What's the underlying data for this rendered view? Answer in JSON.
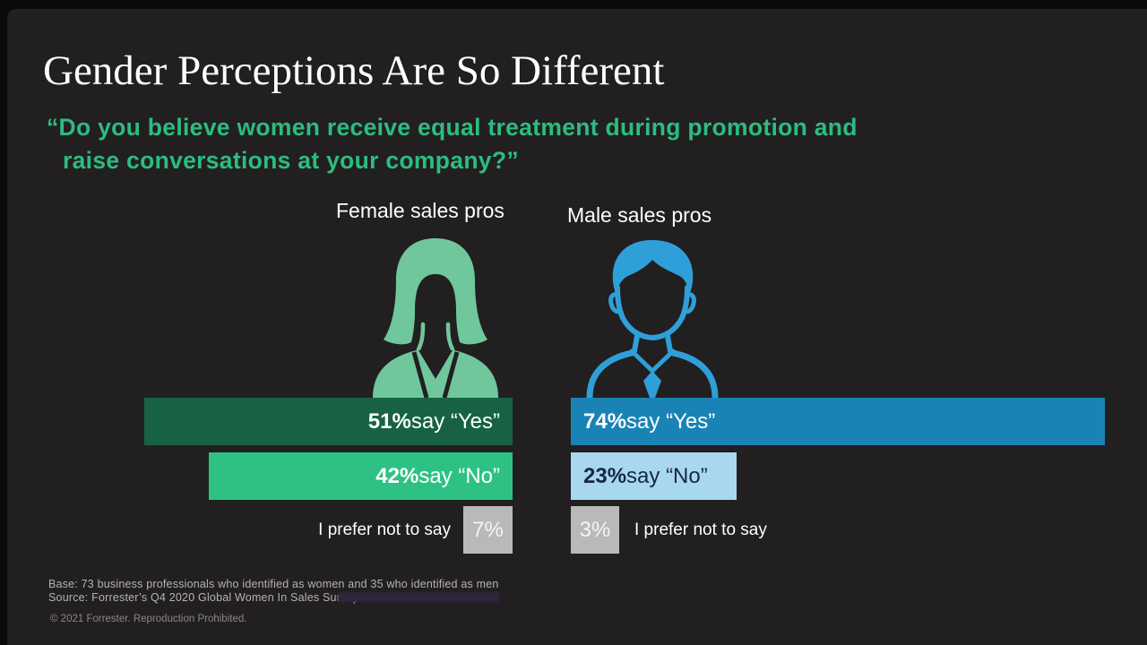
{
  "slide": {
    "title": "Gender Perceptions Are So Different",
    "question": {
      "line1": "“Do you believe women receive equal treatment during promotion and",
      "line2": "raise conversations at your company?”"
    }
  },
  "columns": {
    "female": {
      "label": "Female sales pros",
      "icon": "female-person-icon",
      "bars": {
        "yes": {
          "value": "51%",
          "text": " say “Yes”"
        },
        "no": {
          "value": "42%",
          "text": " say “No”"
        },
        "prefer_not": {
          "value": "7%",
          "label": "I prefer not to say"
        }
      }
    },
    "male": {
      "label": "Male sales pros",
      "icon": "male-person-icon",
      "bars": {
        "yes": {
          "value": "74%",
          "text": " say “Yes”"
        },
        "no": {
          "value": "23%",
          "text": " say “No”"
        },
        "prefer_not": {
          "value": "3%",
          "label": "I prefer not to say"
        }
      }
    }
  },
  "footer": {
    "base": "Base: 73 business professionals who identified as women and 35 who identified as men",
    "source": "Source: Forrester’s Q4 2020 Global Women In Sales Survey",
    "copyright": "© 2021 Forrester. Reproduction Prohibited."
  },
  "colors": {
    "frame_black": "#0a0a0a",
    "slide_background": "#221f20",
    "title_text": "#ffffff",
    "question_green": "#2bbd81",
    "female_icon_green": "#6fc79b",
    "male_icon_blue": "#2f9fd9",
    "bar_yes_female": "#176245",
    "bar_no_female": "#2dc284",
    "bar_yes_male": "#1a83b5",
    "bar_no_male": "#a8d8f0",
    "bar_prefer_gray": "#b9b9bb",
    "navy_text_on_light_blue": "#17283e",
    "footnote_gray": "#b5b2b4",
    "copyright_gray": "#8b8789",
    "obscured_link_purple": "#30243c"
  },
  "chart_data": {
    "type": "bar",
    "orientation": "horizontal",
    "title": "“Do you believe women receive equal treatment during promotion and raise conversations at your company?”",
    "categories": [
      "say “Yes”",
      "say “No”",
      "I prefer not to say"
    ],
    "series": [
      {
        "name": "Female sales pros",
        "values": [
          51,
          42,
          7
        ],
        "color": "#176245/#2dc284/#b9b9bb"
      },
      {
        "name": "Male sales pros",
        "values": [
          74,
          23,
          3
        ],
        "color": "#1a83b5/#a8d8f0/#b9b9bb"
      }
    ],
    "unit": "%",
    "value_range": [
      0,
      100
    ],
    "legend_position": "above-icons",
    "grid": false
  }
}
